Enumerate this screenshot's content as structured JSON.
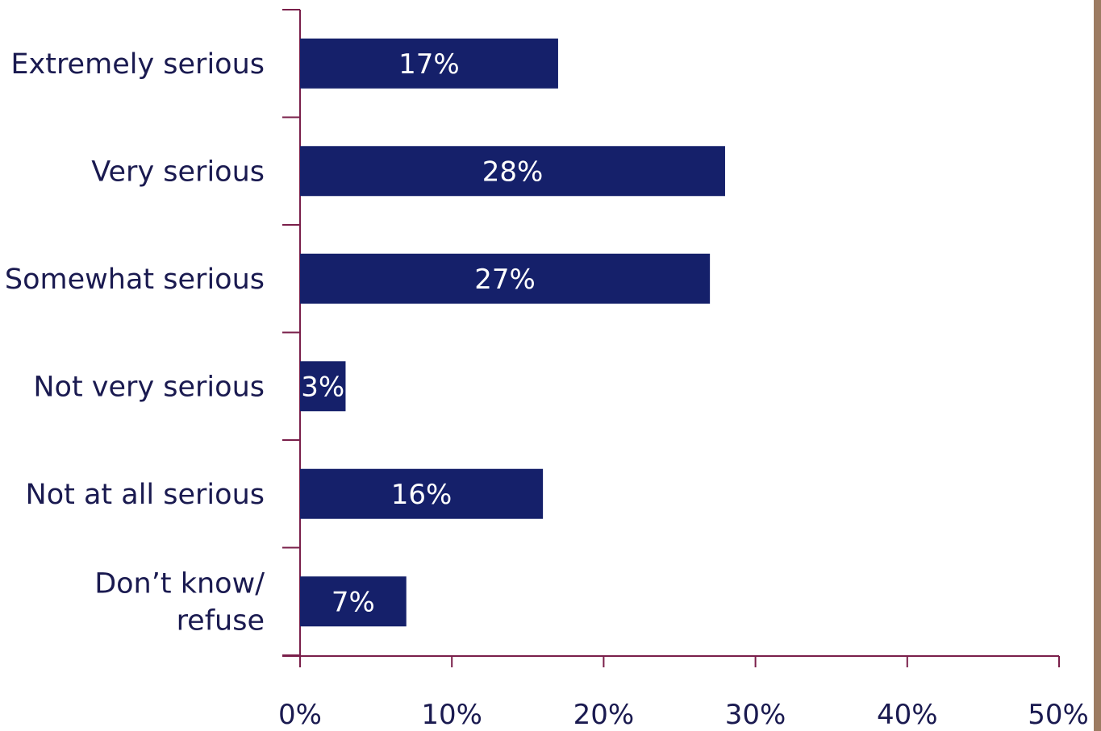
{
  "chart_data": {
    "type": "bar",
    "orientation": "horizontal",
    "categories": [
      [
        "Extremely serious"
      ],
      [
        "Very serious"
      ],
      [
        "Somewhat serious"
      ],
      [
        "Not very serious"
      ],
      [
        "Not at all serious"
      ],
      [
        "Don’t know/",
        "refuse"
      ]
    ],
    "values": [
      17,
      28,
      27,
      3,
      16,
      7
    ],
    "data_labels": [
      "17%",
      "28%",
      "27%",
      "3%",
      "16%",
      "7%"
    ],
    "x_ticks": [
      0,
      10,
      20,
      30,
      40,
      50
    ],
    "x_tick_labels": [
      "0%",
      "10%",
      "20%",
      "30%",
      "40%",
      "50%"
    ],
    "xlim": [
      0,
      50
    ],
    "grid": false,
    "legend": "none",
    "colors": {
      "bar": "#15206a",
      "axis": "#7a1f4a",
      "text": "#1a1a50",
      "label_on_bar": "#ffffff",
      "right_border": "#9c7b62"
    }
  }
}
